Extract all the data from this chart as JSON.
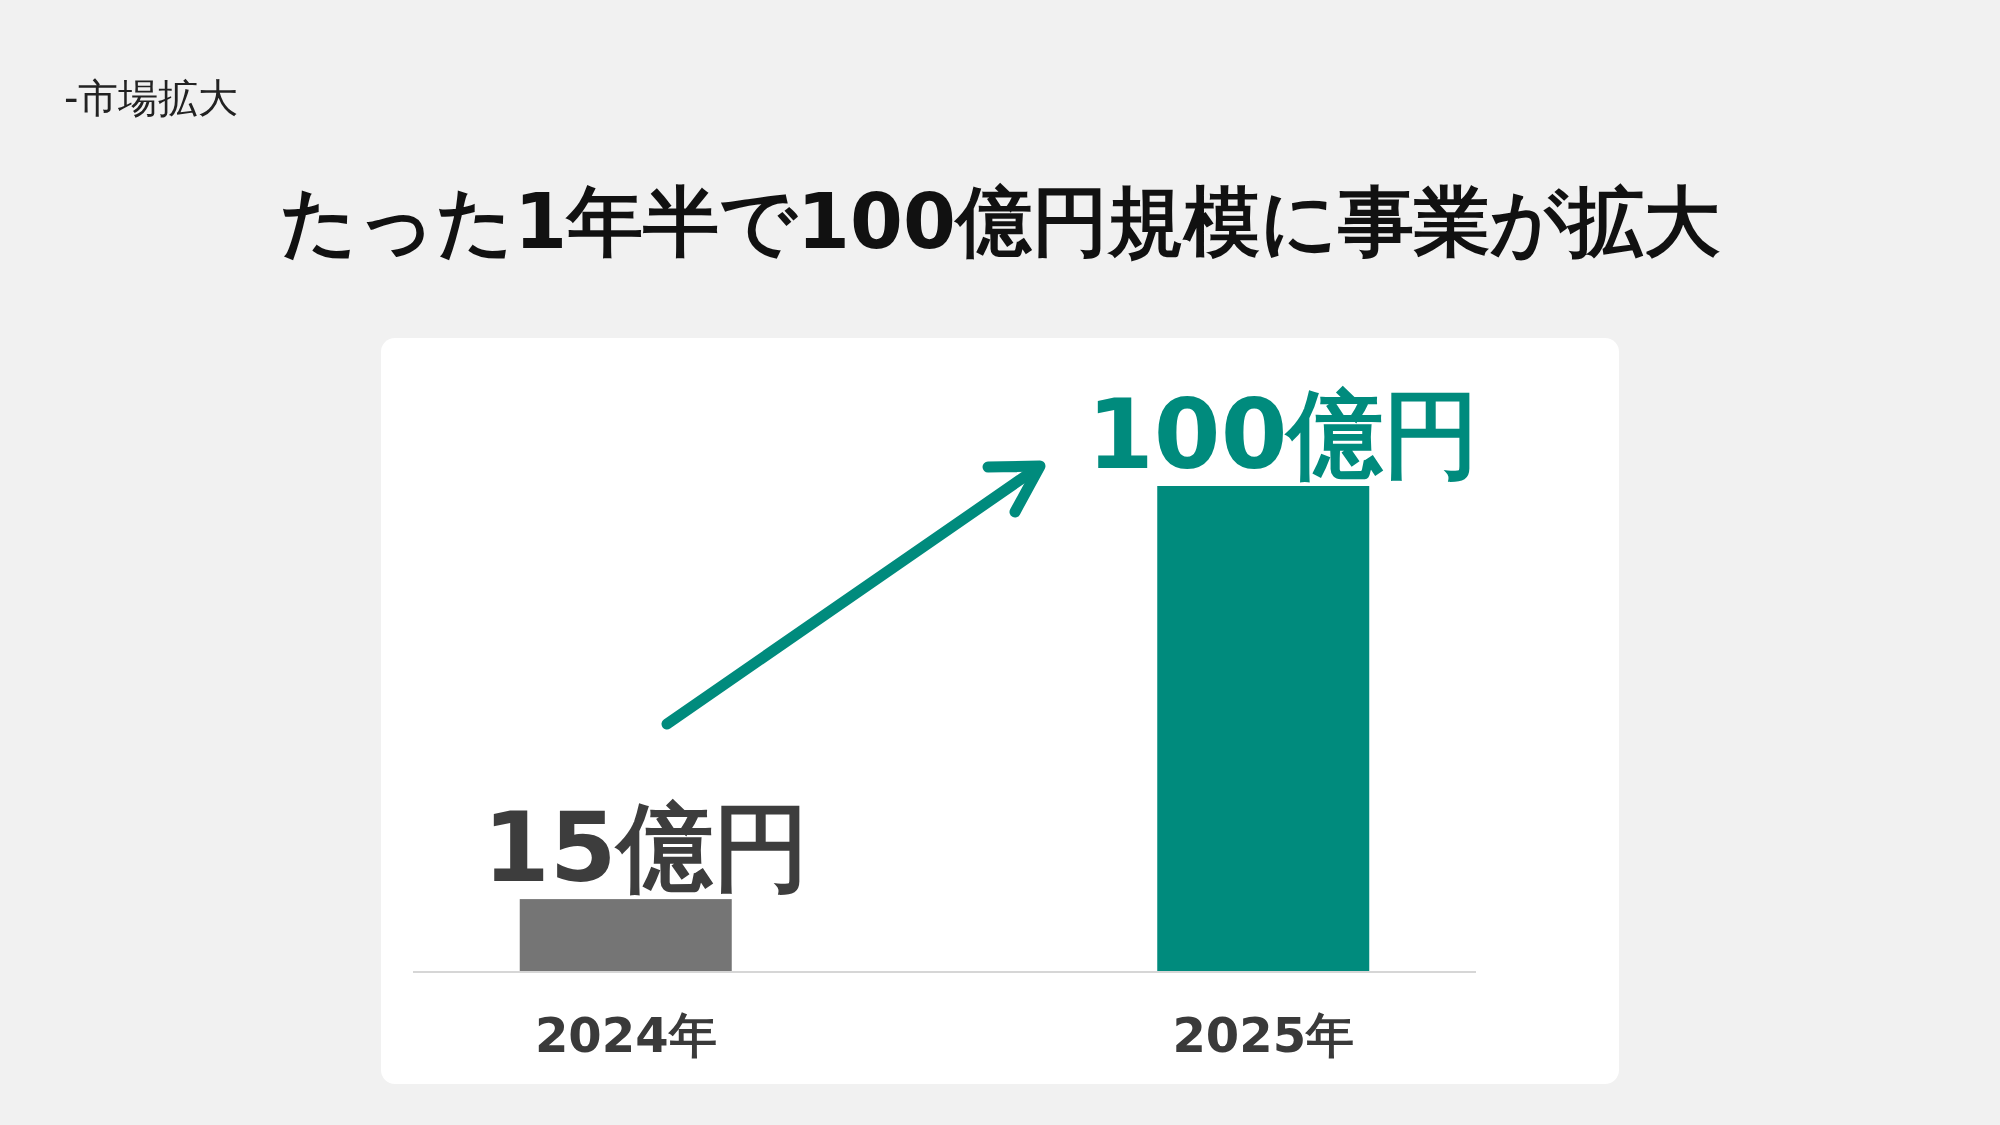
{
  "chart_data": {
    "type": "bar",
    "title": "たった1年半で100億円規模に事業が拡大",
    "subtitle": "-市場拡大",
    "categories": [
      "2024年",
      "2025年"
    ],
    "values": [
      15,
      100
    ],
    "colors": [
      "#757575",
      "#008b7d"
    ],
    "value_labels": [
      "15億円",
      "100億円"
    ]
  }
}
